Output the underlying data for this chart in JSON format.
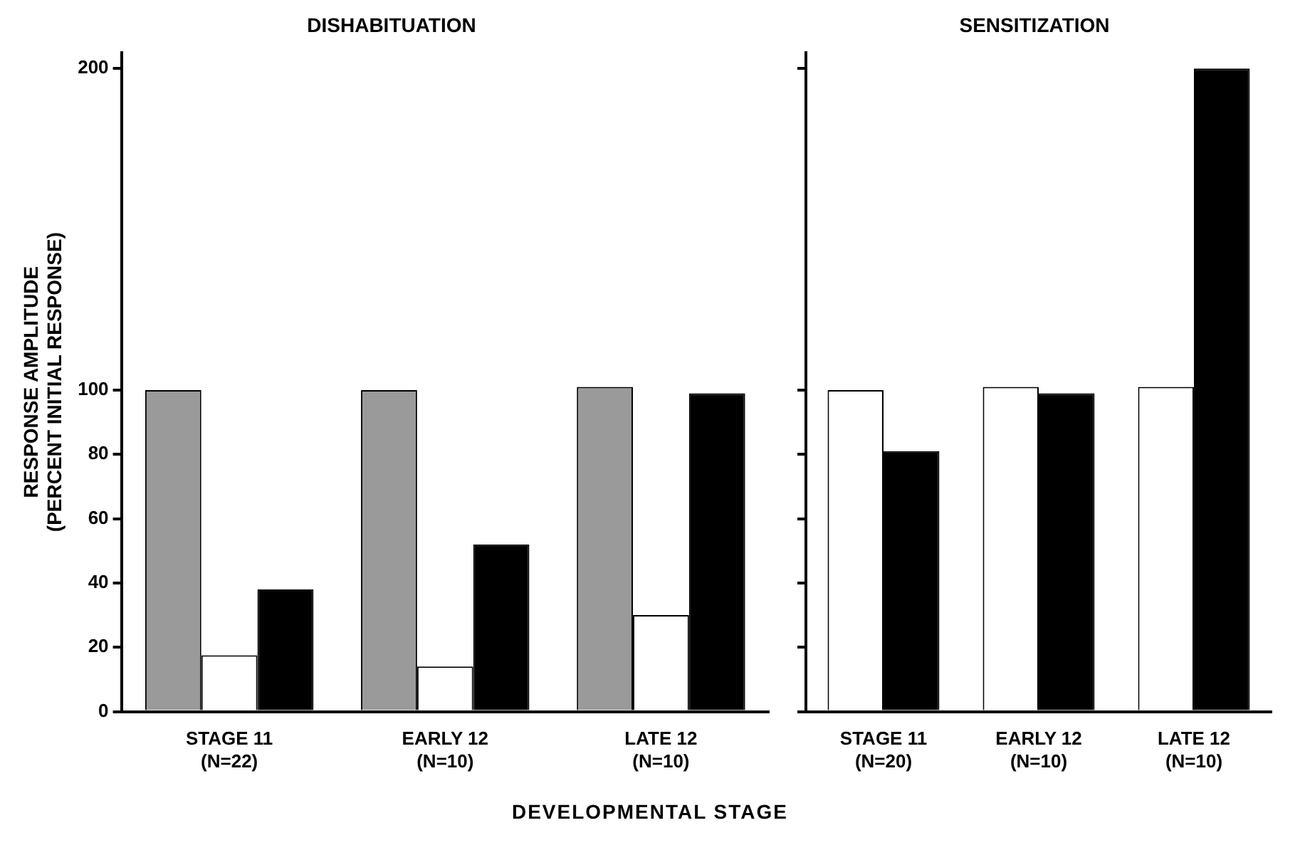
{
  "chart_data": [
    {
      "type": "bar",
      "title": "DISHABITUATION",
      "ylabel": "RESPONSE AMPLITUDE\n(PERCENT INITIAL RESPONSE)",
      "xlabel": "DEVELOPMENTAL STAGE",
      "categories": [
        "STAGE 11\n(N=22)",
        "EARLY 12\n(N=10)",
        "LATE 12\n(N=10)"
      ],
      "series": [
        {
          "color": "#9a9a9a",
          "values": [
            100,
            100,
            101
          ]
        },
        {
          "color": "#ffffff",
          "values": [
            17.5,
            14,
            30
          ]
        },
        {
          "color": "#000000",
          "values": [
            38,
            52,
            99
          ]
        }
      ],
      "ylim": [
        0,
        205
      ],
      "yticks": [
        0,
        20,
        40,
        60,
        80,
        100,
        200
      ],
      "grid": false,
      "legend": false
    },
    {
      "type": "bar",
      "title": "SENSITIZATION",
      "categories": [
        "STAGE 11\n(N=20)",
        "EARLY 12\n(N=10)",
        "LATE 12\n(N=10)"
      ],
      "series": [
        {
          "color": "#ffffff",
          "values": [
            100,
            101,
            101
          ]
        },
        {
          "color": "#000000",
          "values": [
            81,
            99,
            200
          ]
        }
      ],
      "ylim": [
        0,
        205
      ],
      "yticks": [
        0,
        20,
        40,
        60,
        80,
        100,
        200
      ],
      "tick_labels": "x",
      "grid": false,
      "legend": false
    }
  ]
}
